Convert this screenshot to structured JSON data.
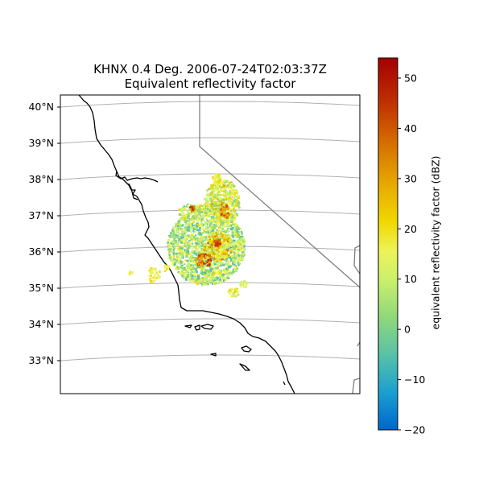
{
  "title": {
    "line1": "KHNX 0.4 Deg. 2006-07-24T02:03:37Z",
    "line2": "Equivalent reflectivity factor"
  },
  "map": {
    "lat_labels": [
      "40°N",
      "39°N",
      "38°N",
      "37°N",
      "36°N",
      "35°N",
      "34°N",
      "33°N"
    ],
    "gridlines": true,
    "features": [
      "coastline",
      "state-borders"
    ],
    "coastline_color": "#000000",
    "border_color": "#808080",
    "gridline_color": "#b0b0b0"
  },
  "colorbar": {
    "label": "equivalent reflectivity factor (dBZ)",
    "ticks": [
      "50",
      "40",
      "30",
      "20",
      "10",
      "0",
      "−10",
      "−20"
    ],
    "tick_values": [
      50,
      40,
      30,
      20,
      10,
      0,
      -10,
      -20
    ],
    "range": [
      -20,
      54
    ],
    "colormap": [
      "#0066cc",
      "#1a9fd0",
      "#57c1a8",
      "#8fd77c",
      "#c8ef6b",
      "#eef35a",
      "#f0d800",
      "#e7a900",
      "#d56f00",
      "#c03000",
      "#a30000"
    ]
  },
  "radar_echo": {
    "station": "KHNX",
    "min_dbz": -20,
    "max_dbz": 54,
    "dominant_range_dbz": [
      5,
      20
    ]
  }
}
